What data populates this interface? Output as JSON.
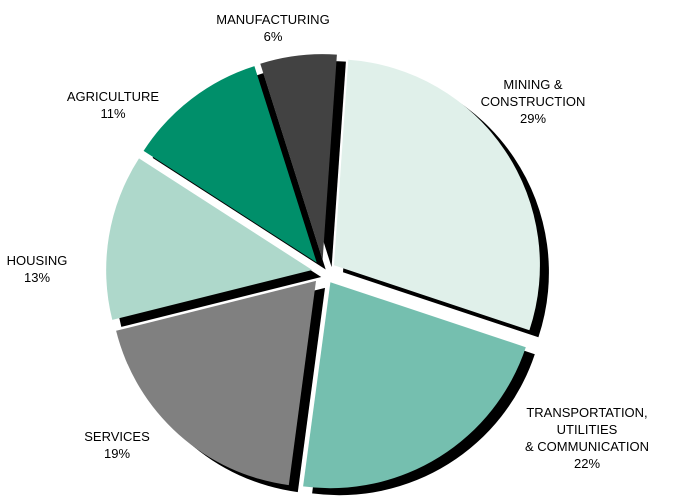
{
  "chart_data": {
    "type": "pie",
    "title": "",
    "exploded": true,
    "shadow": true,
    "slices": [
      {
        "lines": [
          "MINING &",
          "CONSTRUCTION"
        ],
        "percent_label": "29%",
        "value": 29,
        "color": "#e0f0ea"
      },
      {
        "lines": [
          "TRANSPORTATION,",
          "UTILITIES",
          "& COMMUNICATION"
        ],
        "percent_label": "22%",
        "value": 22,
        "color": "#75bfaf"
      },
      {
        "lines": [
          "SERVICES"
        ],
        "percent_label": "19%",
        "value": 19,
        "color": "#808080"
      },
      {
        "lines": [
          "HOUSING"
        ],
        "percent_label": "13%",
        "value": 13,
        "color": "#aed8cb"
      },
      {
        "lines": [
          "AGRICULTURE"
        ],
        "percent_label": "11%",
        "value": 11,
        "color": "#008f6a"
      },
      {
        "lines": [
          "MANUFACTURING"
        ],
        "percent_label": "6%",
        "value": 6,
        "color": "#424242"
      }
    ]
  }
}
